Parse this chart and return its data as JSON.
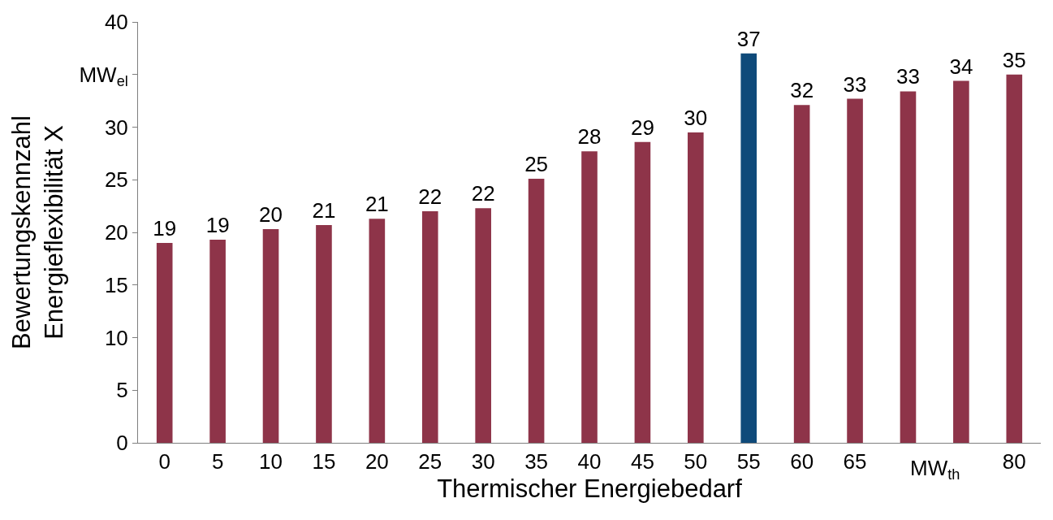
{
  "chart_data": {
    "type": "bar",
    "categories": [
      "0",
      "5",
      "10",
      "15",
      "20",
      "25",
      "30",
      "35",
      "40",
      "45",
      "50",
      "55",
      "60",
      "65",
      null,
      null,
      "80"
    ],
    "values": [
      19.0,
      19.3,
      20.3,
      20.7,
      21.3,
      22.0,
      22.3,
      25.1,
      27.7,
      28.6,
      29.5,
      37.0,
      32.1,
      32.7,
      33.4,
      34.4,
      35.0
    ],
    "value_labels": [
      "19",
      "19",
      "20",
      "21",
      "21",
      "22",
      "22",
      "25",
      "28",
      "29",
      "30",
      "37",
      "32",
      "33",
      "33",
      "34",
      "35"
    ],
    "colors": [
      "#8e3449",
      "#8e3449",
      "#8e3449",
      "#8e3449",
      "#8e3449",
      "#8e3449",
      "#8e3449",
      "#8e3449",
      "#8e3449",
      "#8e3449",
      "#8e3449",
      "#0f4a7a",
      "#8e3449",
      "#8e3449",
      "#8e3449",
      "#8e3449",
      "#8e3449"
    ],
    "xlabel": "Thermischer Energiebedarf",
    "ylabel": "Bewertungskennzahl\nEnergieflexibilität X",
    "annotations": [
      "MW$_{th}$"
    ],
    "ylim": [
      0,
      40
    ],
    "yticks": [
      0,
      5,
      10,
      15,
      20,
      25,
      30,
      {
        "value": 35,
        "label": "MW$_{el}$"
      },
      40
    ]
  }
}
